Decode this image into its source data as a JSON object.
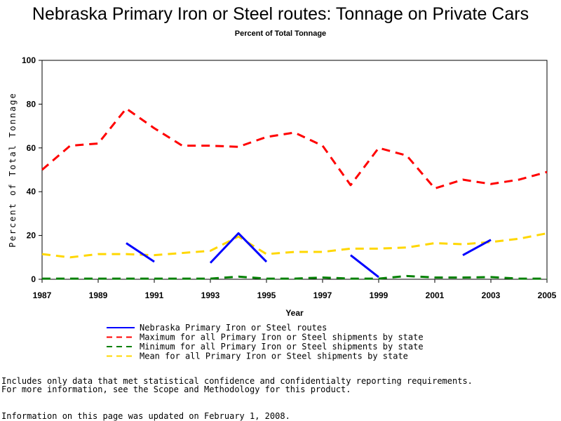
{
  "chart_data": {
    "type": "line",
    "title": "Nebraska Primary Iron or Steel routes: Tonnage on Private Cars",
    "subtitle": "Percent of Total Tonnage",
    "xlabel": "Year",
    "ylabel": "Percent of Total Tonnage",
    "xlim": [
      1987,
      2005
    ],
    "ylim": [
      0,
      100
    ],
    "xticks": [
      1987,
      1989,
      1991,
      1993,
      1995,
      1997,
      1999,
      2001,
      2003,
      2005
    ],
    "yticks": [
      0,
      20,
      40,
      60,
      80,
      100
    ],
    "grid": false,
    "legend_position": "bottom",
    "x": [
      1987,
      1988,
      1989,
      1990,
      1991,
      1992,
      1993,
      1994,
      1995,
      1996,
      1997,
      1998,
      1999,
      2000,
      2001,
      2002,
      2003,
      2004,
      2005
    ],
    "series": [
      {
        "name": "Nebraska Primary Iron or Steel routes",
        "color": "#0000ff",
        "dash": "solid",
        "values": [
          null,
          null,
          null,
          16.5,
          8,
          null,
          7.5,
          21,
          8,
          null,
          null,
          11,
          1,
          null,
          null,
          11,
          18,
          null,
          null
        ]
      },
      {
        "name": "Maximum for all Primary Iron or Steel shipments by state",
        "color": "#ff0000",
        "dash": "dashed",
        "values": [
          50,
          61,
          62,
          78,
          69,
          61,
          61,
          60.5,
          65,
          67,
          61,
          43,
          60,
          56.5,
          41.5,
          45.5,
          43.5,
          45.5,
          49
        ]
      },
      {
        "name": "Minimum for all Primary Iron or Steel shipments by state",
        "color": "#008000",
        "dash": "dashed",
        "values": [
          0.3,
          0.3,
          0.3,
          0.3,
          0.3,
          0.3,
          0.3,
          1.2,
          0.3,
          0.3,
          0.8,
          0.3,
          0.3,
          1.5,
          0.8,
          0.8,
          1,
          0.3,
          0.3
        ]
      },
      {
        "name": "Mean for all Primary Iron or Steel shipments by state",
        "color": "#ffd700",
        "dash": "dashed",
        "values": [
          11.5,
          10,
          11.5,
          11.5,
          11,
          12,
          13,
          19.5,
          11.5,
          12.5,
          12.5,
          14,
          14,
          14.5,
          16.5,
          16,
          17,
          18.5,
          21
        ]
      }
    ]
  },
  "notes": {
    "line1": "Includes only data that met statistical confidence and confidentialty reporting requirements.",
    "line2": "For more information, see the Scope and Methodology for this product.",
    "line3": "Information on this page was updated on February 1, 2008."
  }
}
